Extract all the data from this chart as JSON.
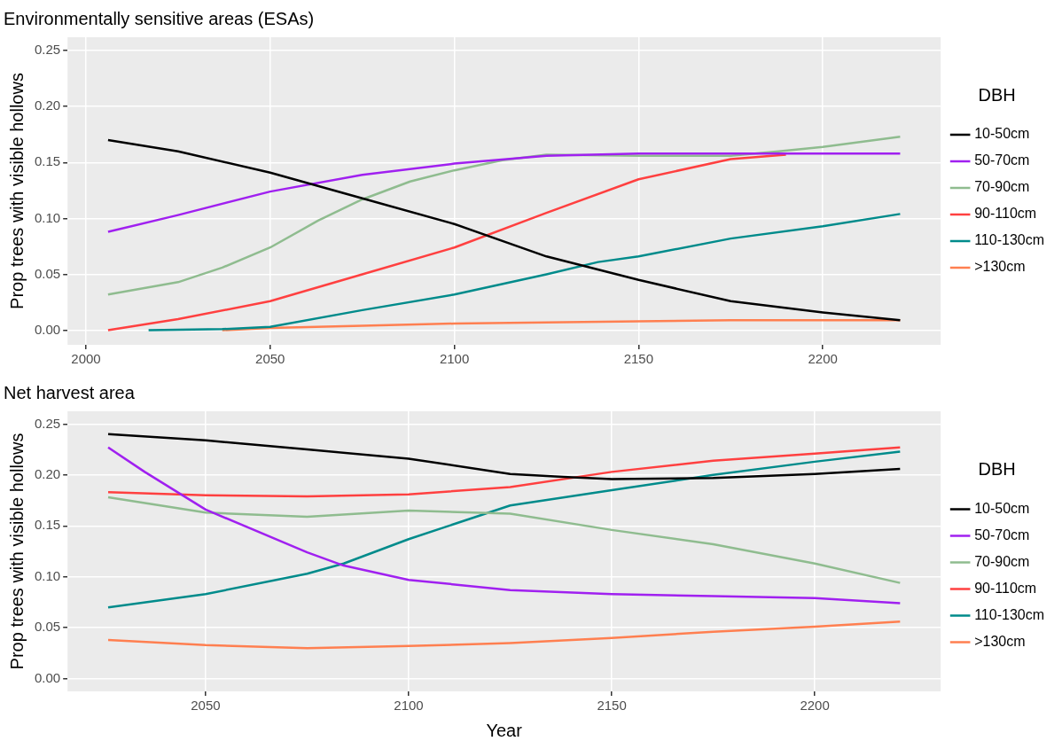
{
  "chart_data": [
    {
      "type": "line",
      "title": "Environmentally sensitive areas (ESAs)",
      "ylabel": "Prop trees with visible hollows",
      "legend_title": "DBH",
      "legend": "right",
      "grid": true,
      "marker": "none",
      "line_style": "solid",
      "xlim": [
        1995,
        2232
      ],
      "xticks": [
        2000,
        2050,
        2100,
        2150,
        2200
      ],
      "ylim": [
        -0.013,
        0.262
      ],
      "yticks": [
        {
          "value": 0,
          "label": "0.00"
        },
        {
          "value": 0.05,
          "label": "0.05"
        },
        {
          "value": 0.1,
          "label": "0.10"
        },
        {
          "value": 0.15,
          "label": "0.15"
        },
        {
          "value": 0.2,
          "label": "0.20"
        },
        {
          "value": 0.25,
          "label": "0.25"
        }
      ],
      "series": [
        {
          "name": "10-50cm",
          "color": "#000000",
          "x": [
            2006,
            2025,
            2050,
            2075,
            2100,
            2125,
            2150,
            2175,
            2200,
            2221
          ],
          "values": [
            0.17,
            0.16,
            0.141,
            0.118,
            0.095,
            0.066,
            0.045,
            0.026,
            0.016,
            0.009
          ]
        },
        {
          "name": "50-70cm",
          "color": "#a020f0",
          "x": [
            2006,
            2025,
            2050,
            2075,
            2100,
            2125,
            2150,
            2175,
            2200,
            2221
          ],
          "values": [
            0.088,
            0.103,
            0.124,
            0.139,
            0.149,
            0.156,
            0.158,
            0.158,
            0.158,
            0.158
          ]
        },
        {
          "name": "70-90cm",
          "color": "#8fbc8f",
          "x": [
            2006,
            2025,
            2037,
            2050,
            2063,
            2075,
            2088,
            2100,
            2113,
            2125,
            2150,
            2175,
            2188,
            2200,
            2221
          ],
          "values": [
            0.032,
            0.043,
            0.056,
            0.074,
            0.098,
            0.117,
            0.133,
            0.143,
            0.152,
            0.157,
            0.156,
            0.156,
            0.16,
            0.164,
            0.173
          ]
        },
        {
          "name": "90-110cm",
          "color": "#ff4040",
          "x": [
            2006,
            2025,
            2050,
            2075,
            2100,
            2125,
            2150,
            2175,
            2190
          ],
          "values": [
            0.0,
            0.01,
            0.026,
            0.05,
            0.074,
            0.105,
            0.135,
            0.153,
            0.157
          ]
        },
        {
          "name": "110-130cm",
          "color": "#008b8b",
          "x": [
            2017,
            2037,
            2050,
            2075,
            2100,
            2125,
            2139,
            2150,
            2175,
            2200,
            2221
          ],
          "values": [
            0.0,
            0.001,
            0.003,
            0.018,
            0.032,
            0.05,
            0.061,
            0.066,
            0.082,
            0.093,
            0.104
          ]
        },
        {
          "name": ">130cm",
          "color": "#ff7f50",
          "x": [
            2037,
            2050,
            2075,
            2100,
            2125,
            2150,
            2175,
            2221
          ],
          "values": [
            0.0,
            0.002,
            0.004,
            0.006,
            0.007,
            0.008,
            0.009,
            0.009
          ]
        }
      ]
    },
    {
      "type": "line",
      "title": "Net harvest area",
      "xlabel": "Year",
      "ylabel": "Prop trees with visible hollows",
      "legend_title": "DBH",
      "legend": "right",
      "grid": true,
      "marker": "none",
      "line_style": "solid",
      "xlim": [
        2016,
        2231
      ],
      "xticks": [
        2050,
        2100,
        2150,
        2200
      ],
      "ylim": [
        -0.0125,
        0.2625
      ],
      "yticks": [
        {
          "value": 0,
          "label": "0.00"
        },
        {
          "value": 0.05,
          "label": "0.05"
        },
        {
          "value": 0.1,
          "label": "0.10"
        },
        {
          "value": 0.15,
          "label": "0.15"
        },
        {
          "value": 0.2,
          "label": "0.20"
        },
        {
          "value": 0.25,
          "label": "0.25"
        }
      ],
      "series": [
        {
          "name": "10-50cm",
          "color": "#000000",
          "x": [
            2026,
            2050,
            2075,
            2100,
            2125,
            2138,
            2150,
            2175,
            2200,
            2221
          ],
          "values": [
            0.24,
            0.234,
            0.225,
            0.216,
            0.201,
            0.198,
            0.196,
            0.197,
            0.201,
            0.206
          ]
        },
        {
          "name": "50-70cm",
          "color": "#a020f0",
          "x": [
            2026,
            2035,
            2050,
            2075,
            2084,
            2100,
            2125,
            2150,
            2175,
            2200,
            2221
          ],
          "values": [
            0.227,
            0.203,
            0.166,
            0.124,
            0.111,
            0.097,
            0.087,
            0.083,
            0.081,
            0.079,
            0.074
          ]
        },
        {
          "name": "70-90cm",
          "color": "#8fbc8f",
          "x": [
            2026,
            2050,
            2075,
            2100,
            2125,
            2150,
            2175,
            2200,
            2221
          ],
          "values": [
            0.178,
            0.163,
            0.159,
            0.165,
            0.162,
            0.146,
            0.132,
            0.113,
            0.094
          ]
        },
        {
          "name": "90-110cm",
          "color": "#ff4040",
          "x": [
            2026,
            2050,
            2075,
            2100,
            2125,
            2150,
            2175,
            2200,
            2221
          ],
          "values": [
            0.183,
            0.18,
            0.179,
            0.181,
            0.188,
            0.203,
            0.214,
            0.221,
            0.227
          ]
        },
        {
          "name": "110-130cm",
          "color": "#008b8b",
          "x": [
            2026,
            2050,
            2075,
            2084,
            2100,
            2125,
            2150,
            2175,
            2200,
            2221
          ],
          "values": [
            0.07,
            0.083,
            0.103,
            0.113,
            0.137,
            0.17,
            0.185,
            0.2,
            0.213,
            0.223
          ]
        },
        {
          "name": ">130cm",
          "color": "#ff7f50",
          "x": [
            2026,
            2050,
            2075,
            2100,
            2125,
            2150,
            2175,
            2200,
            2221
          ],
          "values": [
            0.038,
            0.033,
            0.03,
            0.032,
            0.035,
            0.04,
            0.046,
            0.051,
            0.056
          ]
        }
      ]
    }
  ]
}
